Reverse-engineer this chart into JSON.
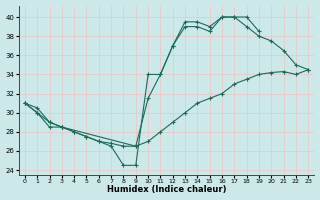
{
  "xlabel": "Humidex (Indice chaleur)",
  "bg_color": "#cce8e8",
  "grid_color": "#e8c8c8",
  "line_color": "#1a6b5a",
  "xlim": [
    -0.5,
    23.5
  ],
  "ylim": [
    23.5,
    41.2
  ],
  "xticks": [
    0,
    1,
    2,
    3,
    4,
    5,
    6,
    7,
    8,
    9,
    10,
    11,
    12,
    13,
    14,
    15,
    16,
    17,
    18,
    19,
    20,
    21,
    22,
    23
  ],
  "yticks": [
    24,
    26,
    28,
    30,
    32,
    34,
    36,
    38,
    40
  ],
  "line1_x": [
    0,
    1,
    2,
    3,
    4,
    5,
    6,
    7,
    8,
    9,
    10,
    11,
    12,
    13,
    14,
    15,
    16,
    17,
    18,
    19
  ],
  "line1_y": [
    31,
    30,
    28.5,
    28.5,
    28,
    27.5,
    27,
    26.5,
    24.5,
    24.5,
    34,
    34,
    37,
    39,
    39,
    38.5,
    40,
    40,
    40,
    38.5
  ],
  "line2_x": [
    0,
    1,
    2,
    3,
    9,
    10,
    11,
    12,
    13,
    14,
    15,
    16,
    17,
    18,
    19,
    20,
    21,
    22,
    23
  ],
  "line2_y": [
    31,
    30.5,
    29,
    28.5,
    26.5,
    31.5,
    34,
    37,
    39.5,
    39.5,
    39,
    40,
    40,
    39,
    38,
    37.5,
    36.5,
    35,
    34.5
  ],
  "line3_x": [
    0,
    1,
    2,
    3,
    4,
    5,
    6,
    7,
    8,
    9,
    10,
    11,
    12,
    13,
    14,
    15,
    16,
    17,
    18,
    19,
    20,
    21,
    22,
    23
  ],
  "line3_y": [
    31,
    30,
    29,
    28.5,
    28,
    27.5,
    27,
    26.8,
    26.5,
    26.5,
    27,
    28,
    29,
    30,
    31,
    31.5,
    32,
    33,
    33.5,
    34,
    34.2,
    34.3,
    34,
    34.5
  ]
}
